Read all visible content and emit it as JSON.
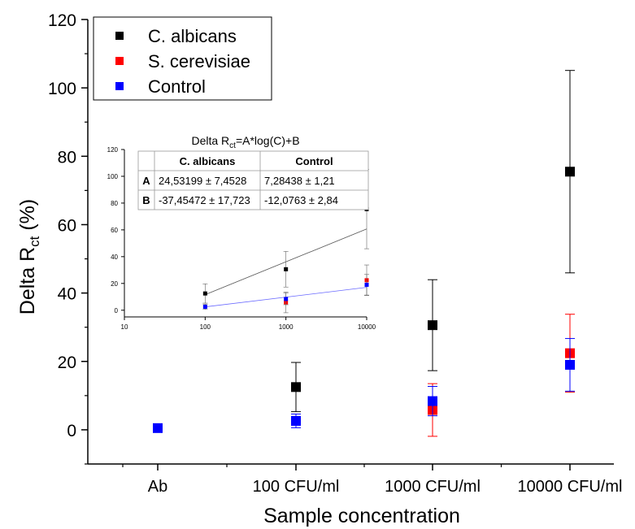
{
  "chart_data": [
    {
      "type": "scatter",
      "xlabel": "Sample concentration",
      "ylabel_main": "Delta R",
      "ylabel_sub": "ct",
      "ylabel_unit": " (%)",
      "categories": [
        "Ab",
        "100 CFU/ml",
        "1000 CFU/ml",
        "10000 CFU/ml"
      ],
      "ylim": [
        -10,
        120
      ],
      "yticks": [
        0,
        20,
        40,
        60,
        80,
        100,
        120
      ],
      "legend_position": "top-left",
      "series": [
        {
          "name": "C. albicans",
          "color": "#000000",
          "points": [
            {
              "category": "100 CFU/ml",
              "y": 12.5,
              "err": 7.2
            },
            {
              "category": "1000 CFU/ml",
              "y": 30.6,
              "err": 13.3
            },
            {
              "category": "10000 CFU/ml",
              "y": 75.5,
              "err": 29.6
            }
          ]
        },
        {
          "name": "S. cerevisiae",
          "color": "#ff0000",
          "points": [
            {
              "category": "1000 CFU/ml",
              "y": 5.8,
              "err": 7.7
            },
            {
              "category": "10000 CFU/ml",
              "y": 22.4,
              "err": 11.4
            }
          ]
        },
        {
          "name": "Control",
          "color": "#0000ff",
          "points": [
            {
              "category": "Ab",
              "y": 0.5,
              "err": 0
            },
            {
              "category": "100 CFU/ml",
              "y": 2.6,
              "err": 2.0
            },
            {
              "category": "1000 CFU/ml",
              "y": 8.4,
              "err": 4.3
            },
            {
              "category": "10000 CFU/ml",
              "y": 19.0,
              "err": 7.7
            }
          ]
        }
      ]
    },
    {
      "type": "scatter",
      "title_main": "Delta R",
      "title_sub": "ct",
      "title_rest": "=A*log(C)+B",
      "xscale": "log",
      "xlim": [
        10,
        10000
      ],
      "xticks": [
        "10",
        "100",
        "1000",
        "10000"
      ],
      "ylim": [
        -5,
        120
      ],
      "yticks": [
        "0",
        "20",
        "40",
        "60",
        "80",
        "100",
        "120"
      ],
      "series": [
        {
          "name": "C. albicans",
          "color": "#000000",
          "x": [
            100,
            1000,
            10000
          ],
          "y": [
            12.5,
            30.6,
            75.5
          ],
          "err": [
            7.2,
            13.3,
            29.6
          ],
          "fit": {
            "A": 24.53199,
            "B": -37.45472
          }
        },
        {
          "name": "S. cerevisiae",
          "color": "#ff0000",
          "x": [
            1000,
            10000
          ],
          "y": [
            5.8,
            22.4
          ],
          "err": [
            7.7,
            11.4
          ]
        },
        {
          "name": "Control",
          "color": "#0000ff",
          "x": [
            100,
            1000,
            10000
          ],
          "y": [
            2.6,
            8.4,
            19.0
          ],
          "err": [
            2.0,
            4.3,
            7.7
          ],
          "fit": {
            "A": 7.28438,
            "B": -12.0763
          }
        }
      ],
      "table": {
        "headers": [
          "",
          "C. albicans",
          "Control"
        ],
        "rows": [
          [
            "A",
            "24,53199 ± 7,4528",
            "7,28438 ± 1,21"
          ],
          [
            "B",
            "-37,45472 ± 17,723",
            "-12,0763 ± 2,84"
          ]
        ]
      }
    }
  ]
}
